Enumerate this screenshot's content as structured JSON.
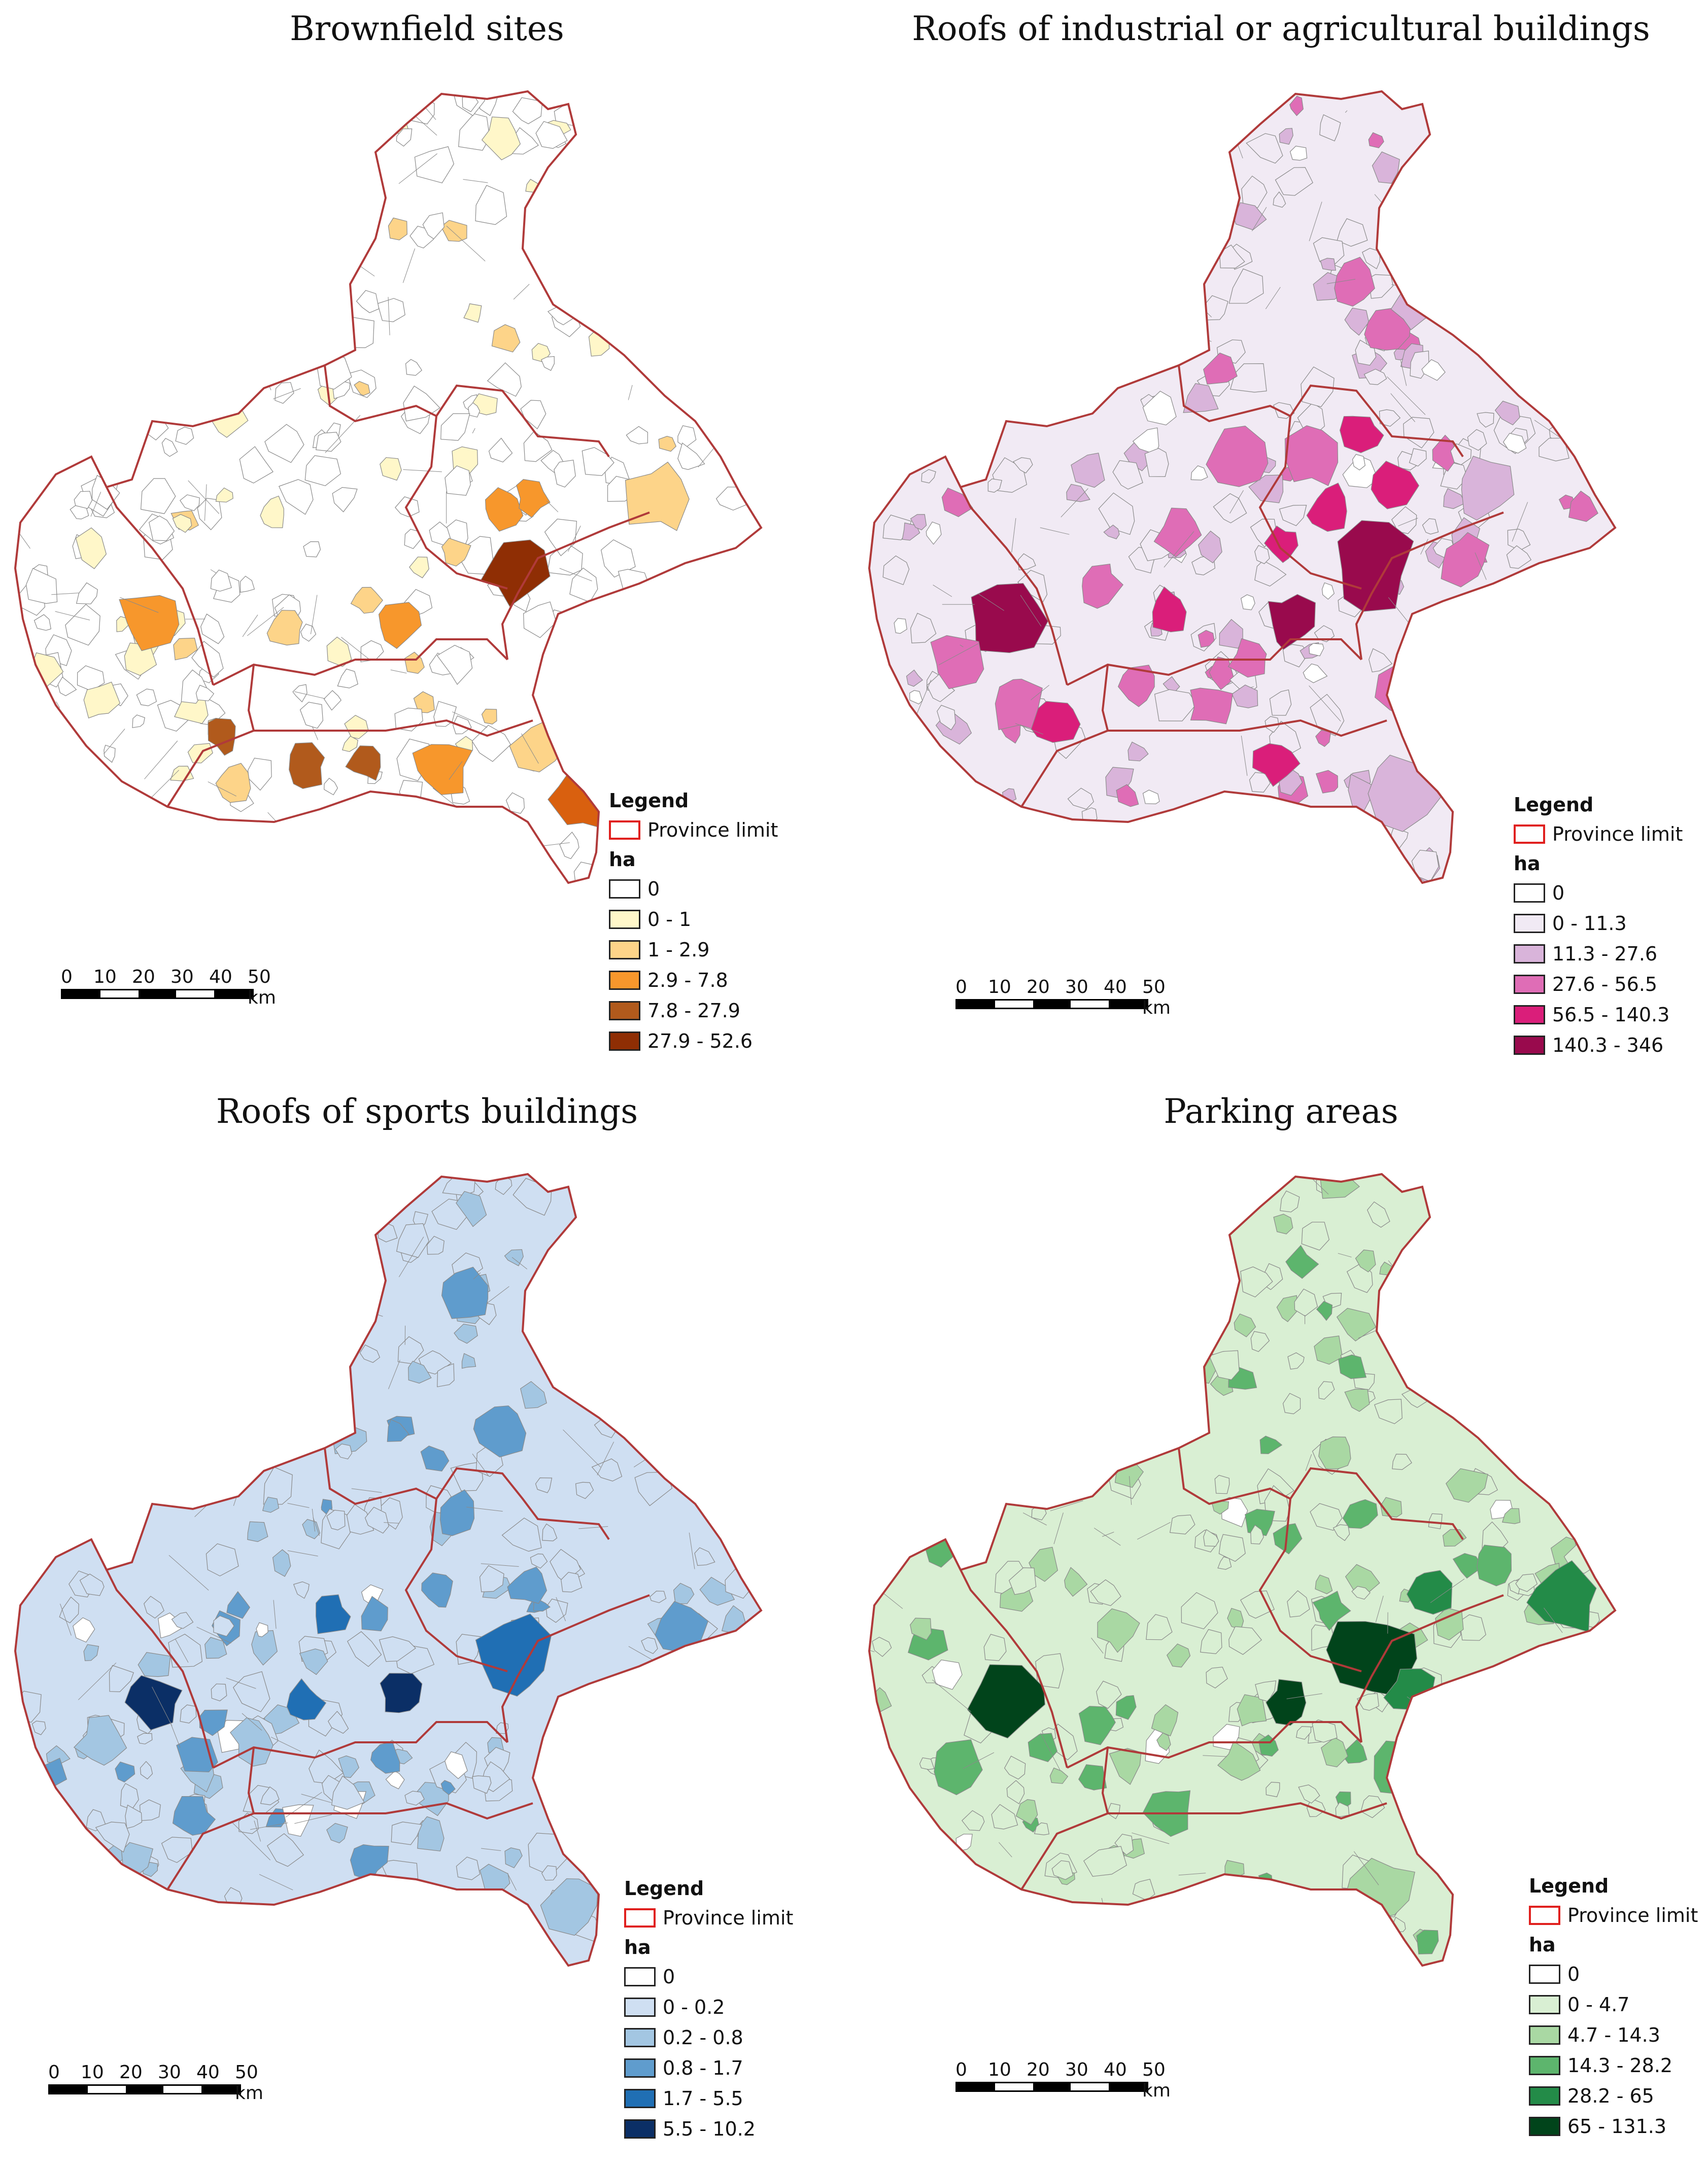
{
  "panels": [
    {
      "title": "Brownfield sites",
      "legend": {
        "title": "Legend",
        "province_label": "Province limit",
        "unit": "ha",
        "classes": [
          {
            "label": "0",
            "color": "#ffffff"
          },
          {
            "label": "0 - 1",
            "color": "#fff7c9"
          },
          {
            "label": "1 - 2.9",
            "color": "#fdd489"
          },
          {
            "label": "2.9 - 7.8",
            "color": "#f7972c"
          },
          {
            "label": "7.8 - 27.9",
            "color": "#b15a1c"
          },
          {
            "label": "27.9 - 52.6",
            "color": "#8f2e04"
          }
        ]
      },
      "extra_colors": {
        "large_patch": "#d9600f"
      }
    },
    {
      "title": "Roofs of industrial or agricultural buildings",
      "legend": {
        "title": "Legend",
        "province_label": "Province limit",
        "unit": "ha",
        "classes": [
          {
            "label": "0",
            "color": "#ffffff"
          },
          {
            "label": "0 - 11.3",
            "color": "#f1eaf4"
          },
          {
            "label": "11.3 - 27.6",
            "color": "#d9b4da"
          },
          {
            "label": "27.6 - 56.5",
            "color": "#df6db6"
          },
          {
            "label": "56.5 - 140.3",
            "color": "#da1e7a"
          },
          {
            "label": "140.3 - 346",
            "color": "#990a4d"
          }
        ]
      }
    },
    {
      "title": "Roofs of sports buildings",
      "legend": {
        "title": "Legend",
        "province_label": "Province limit",
        "unit": "ha",
        "classes": [
          {
            "label": "0",
            "color": "#ffffff"
          },
          {
            "label": "0 - 0.2",
            "color": "#cfdff2"
          },
          {
            "label": "0.2 - 0.8",
            "color": "#a3c6e2"
          },
          {
            "label": "0.8 - 1.7",
            "color": "#5f9ccd"
          },
          {
            "label": "1.7 - 5.5",
            "color": "#206fb4"
          },
          {
            "label": "5.5 - 10.2",
            "color": "#0b2f66"
          }
        ]
      }
    },
    {
      "title": "Parking areas",
      "legend": {
        "title": "Legend",
        "province_label": "Province limit",
        "unit": "ha",
        "classes": [
          {
            "label": "0",
            "color": "#ffffff"
          },
          {
            "label": "0 - 4.7",
            "color": "#d9efd3"
          },
          {
            "label": "4.7 - 14.3",
            "color": "#a9d8a3"
          },
          {
            "label": "14.3 - 28.2",
            "color": "#5db56d"
          },
          {
            "label": "28.2 - 65",
            "color": "#238b48"
          },
          {
            "label": "65 - 131.3",
            "color": "#01441b"
          }
        ]
      }
    }
  ],
  "scale_bar": {
    "labels": [
      "0",
      "10",
      "20",
      "30",
      "40",
      "50 km"
    ]
  },
  "colors": {
    "province_border": "#b03a3a",
    "municipal_border": "#8a8a8a"
  }
}
